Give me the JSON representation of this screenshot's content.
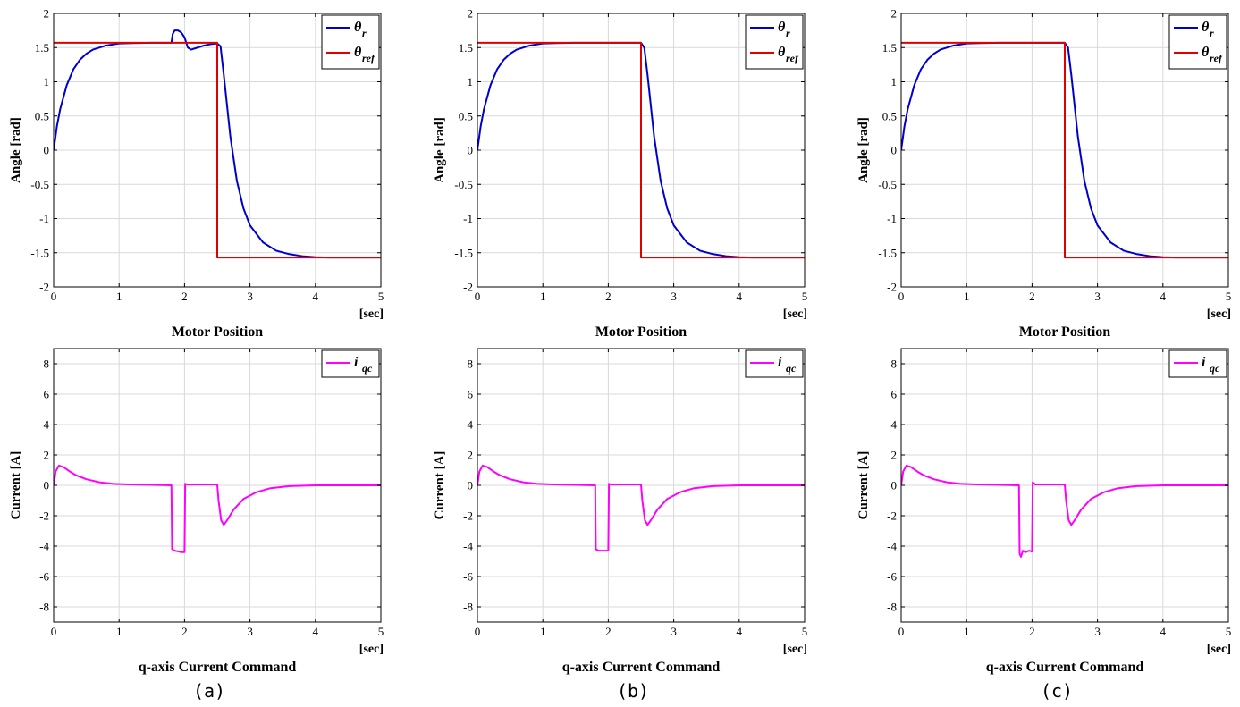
{
  "colors": {
    "theta_r": "#0000cc",
    "theta_ref": "#e00000",
    "iqc": "#ff00ff",
    "grid": "#d9d9d9",
    "axes": "#000000"
  },
  "chart_data": [
    {
      "id": "a-pos",
      "type": "line",
      "title": "Motor Position",
      "ylabel": "Angle [rad]",
      "xunit": "[sec]",
      "xlim": [
        0,
        5
      ],
      "ylim": [
        -2,
        2
      ],
      "xticks": [
        "0",
        "1",
        "2",
        "3",
        "4",
        "5"
      ],
      "yticks": [
        "-2",
        "-1.5",
        "-1",
        "-0.5",
        "0",
        "0.5",
        "1",
        "1.5",
        "2"
      ],
      "legend": [
        {
          "label": "θ",
          "sub": "r",
          "color": "#0000cc"
        },
        {
          "label": "θ",
          "sub": "ref",
          "color": "#e00000"
        }
      ],
      "legend_position": "top-right",
      "series": [
        {
          "name": "θr",
          "color": "#0000cc",
          "x": [
            0,
            0.05,
            0.1,
            0.2,
            0.3,
            0.4,
            0.5,
            0.6,
            0.8,
            1.0,
            1.2,
            1.5,
            1.8,
            1.82,
            1.85,
            1.9,
            1.95,
            2.0,
            2.05,
            2.1,
            2.2,
            2.3,
            2.4,
            2.5,
            2.55,
            2.6,
            2.7,
            2.8,
            2.9,
            3.0,
            3.2,
            3.4,
            3.6,
            3.8,
            4.0,
            4.2,
            4.5,
            5.0
          ],
          "y": [
            0,
            0.35,
            0.6,
            0.95,
            1.18,
            1.32,
            1.41,
            1.47,
            1.53,
            1.56,
            1.565,
            1.57,
            1.57,
            1.7,
            1.75,
            1.75,
            1.72,
            1.65,
            1.5,
            1.47,
            1.5,
            1.53,
            1.55,
            1.56,
            1.52,
            1.1,
            0.2,
            -0.45,
            -0.85,
            -1.1,
            -1.35,
            -1.47,
            -1.52,
            -1.55,
            -1.565,
            -1.57,
            -1.57,
            -1.57
          ]
        },
        {
          "name": "θref",
          "color": "#e00000",
          "x": [
            0,
            2.5,
            2.5,
            5
          ],
          "y": [
            1.57,
            1.57,
            -1.57,
            -1.57
          ]
        }
      ]
    },
    {
      "id": "b-pos",
      "type": "line",
      "title": "Motor Position",
      "ylabel": "Angle [rad]",
      "xunit": "[sec]",
      "xlim": [
        0,
        5
      ],
      "ylim": [
        -2,
        2
      ],
      "xticks": [
        "0",
        "1",
        "2",
        "3",
        "4",
        "5"
      ],
      "yticks": [
        "-2",
        "-1.5",
        "-1",
        "-0.5",
        "0",
        "0.5",
        "1",
        "1.5",
        "2"
      ],
      "legend": [
        {
          "label": "θ",
          "sub": "r",
          "color": "#0000cc"
        },
        {
          "label": "θ",
          "sub": "ref",
          "color": "#e00000"
        }
      ],
      "legend_position": "top-right",
      "series": [
        {
          "name": "θr",
          "color": "#0000cc",
          "x": [
            0,
            0.05,
            0.1,
            0.2,
            0.3,
            0.4,
            0.5,
            0.6,
            0.8,
            1.0,
            1.2,
            1.5,
            2.0,
            2.5,
            2.55,
            2.6,
            2.7,
            2.8,
            2.9,
            3.0,
            3.2,
            3.4,
            3.6,
            3.8,
            4.0,
            4.2,
            4.5,
            5.0
          ],
          "y": [
            0,
            0.35,
            0.6,
            0.95,
            1.18,
            1.32,
            1.41,
            1.47,
            1.53,
            1.56,
            1.565,
            1.57,
            1.57,
            1.57,
            1.5,
            1.1,
            0.2,
            -0.45,
            -0.85,
            -1.1,
            -1.35,
            -1.47,
            -1.52,
            -1.55,
            -1.565,
            -1.57,
            -1.57,
            -1.57
          ]
        },
        {
          "name": "θref",
          "color": "#e00000",
          "x": [
            0,
            2.5,
            2.5,
            5
          ],
          "y": [
            1.57,
            1.57,
            -1.57,
            -1.57
          ]
        }
      ]
    },
    {
      "id": "c-pos",
      "type": "line",
      "title": "Motor Position",
      "ylabel": "Angle [rad]",
      "xunit": "[sec]",
      "xlim": [
        0,
        5
      ],
      "ylim": [
        -2,
        2
      ],
      "xticks": [
        "0",
        "1",
        "2",
        "3",
        "4",
        "5"
      ],
      "yticks": [
        "-2",
        "-1.5",
        "-1",
        "-0.5",
        "0",
        "0.5",
        "1",
        "1.5",
        "2"
      ],
      "legend": [
        {
          "label": "θ",
          "sub": "r",
          "color": "#0000cc"
        },
        {
          "label": "θ",
          "sub": "ref",
          "color": "#e00000"
        }
      ],
      "legend_position": "top-right",
      "series": [
        {
          "name": "θr",
          "color": "#0000cc",
          "x": [
            0,
            0.05,
            0.1,
            0.2,
            0.3,
            0.4,
            0.5,
            0.6,
            0.8,
            1.0,
            1.2,
            1.5,
            2.0,
            2.5,
            2.55,
            2.6,
            2.7,
            2.8,
            2.9,
            3.0,
            3.2,
            3.4,
            3.6,
            3.8,
            4.0,
            4.2,
            4.5,
            5.0
          ],
          "y": [
            0,
            0.35,
            0.6,
            0.95,
            1.18,
            1.32,
            1.41,
            1.47,
            1.53,
            1.56,
            1.565,
            1.57,
            1.57,
            1.57,
            1.5,
            1.1,
            0.2,
            -0.45,
            -0.85,
            -1.1,
            -1.35,
            -1.47,
            -1.52,
            -1.55,
            -1.565,
            -1.57,
            -1.57,
            -1.57
          ]
        },
        {
          "name": "θref",
          "color": "#e00000",
          "x": [
            0,
            2.5,
            2.5,
            5
          ],
          "y": [
            1.57,
            1.57,
            -1.57,
            -1.57
          ]
        }
      ]
    },
    {
      "id": "a-cur",
      "type": "line",
      "title": "q-axis Current Command",
      "ylabel": "Current [A]",
      "xunit": "[sec]",
      "xlim": [
        0,
        5
      ],
      "ylim": [
        -9,
        9
      ],
      "xticks": [
        "0",
        "1",
        "2",
        "3",
        "4",
        "5"
      ],
      "yticks": [
        "-8",
        "-6",
        "-4",
        "-2",
        "0",
        "2",
        "4",
        "6",
        "8"
      ],
      "legend": [
        {
          "label": "i",
          "sub": "qc",
          "color": "#ff00ff"
        }
      ],
      "legend_position": "top-right",
      "series": [
        {
          "name": "iqc",
          "color": "#ff00ff",
          "x": [
            0,
            0.03,
            0.08,
            0.15,
            0.25,
            0.35,
            0.5,
            0.7,
            0.9,
            1.2,
            1.5,
            1.8,
            1.81,
            1.85,
            1.9,
            1.95,
            1.99,
            2.0,
            2.01,
            2.05,
            2.2,
            2.4,
            2.5,
            2.52,
            2.56,
            2.6,
            2.65,
            2.75,
            2.9,
            3.1,
            3.3,
            3.6,
            4.0,
            4.5,
            5.0
          ],
          "y": [
            0,
            0.9,
            1.3,
            1.2,
            0.9,
            0.65,
            0.4,
            0.2,
            0.1,
            0.05,
            0.03,
            0.0,
            -4.2,
            -4.3,
            -4.35,
            -4.4,
            -4.4,
            -4.4,
            0.1,
            0.05,
            0.05,
            0.05,
            0.05,
            -1.0,
            -2.3,
            -2.6,
            -2.3,
            -1.6,
            -0.9,
            -0.45,
            -0.2,
            -0.05,
            0.0,
            0.0,
            0.0
          ]
        }
      ]
    },
    {
      "id": "b-cur",
      "type": "line",
      "title": "q-axis Current Command",
      "ylabel": "Current [A]",
      "xunit": "[sec]",
      "xlim": [
        0,
        5
      ],
      "ylim": [
        -9,
        9
      ],
      "xticks": [
        "0",
        "1",
        "2",
        "3",
        "4",
        "5"
      ],
      "yticks": [
        "-8",
        "-6",
        "-4",
        "-2",
        "0",
        "2",
        "4",
        "6",
        "8"
      ],
      "legend": [
        {
          "label": "i",
          "sub": "qc",
          "color": "#ff00ff"
        }
      ],
      "legend_position": "top-right",
      "series": [
        {
          "name": "iqc",
          "color": "#ff00ff",
          "x": [
            0,
            0.03,
            0.08,
            0.15,
            0.25,
            0.35,
            0.5,
            0.7,
            0.9,
            1.2,
            1.5,
            1.8,
            1.81,
            1.85,
            1.9,
            1.95,
            1.99,
            2.0,
            2.01,
            2.05,
            2.2,
            2.4,
            2.5,
            2.52,
            2.56,
            2.6,
            2.65,
            2.75,
            2.9,
            3.1,
            3.3,
            3.6,
            4.0,
            4.5,
            5.0
          ],
          "y": [
            0,
            0.9,
            1.3,
            1.2,
            0.9,
            0.65,
            0.4,
            0.2,
            0.1,
            0.05,
            0.03,
            0.0,
            -4.2,
            -4.3,
            -4.3,
            -4.3,
            -4.3,
            -4.3,
            0.1,
            0.05,
            0.05,
            0.05,
            0.05,
            -1.0,
            -2.3,
            -2.6,
            -2.3,
            -1.6,
            -0.9,
            -0.45,
            -0.2,
            -0.05,
            0.0,
            0.0,
            0.0
          ]
        }
      ]
    },
    {
      "id": "c-cur",
      "type": "line",
      "title": "q-axis Current Command",
      "ylabel": "Current [A]",
      "xunit": "[sec]",
      "xlim": [
        0,
        5
      ],
      "ylim": [
        -9,
        9
      ],
      "xticks": [
        "0",
        "1",
        "2",
        "3",
        "4",
        "5"
      ],
      "yticks": [
        "-8",
        "-6",
        "-4",
        "-2",
        "0",
        "2",
        "4",
        "6",
        "8"
      ],
      "legend": [
        {
          "label": "i",
          "sub": "qc",
          "color": "#ff00ff"
        }
      ],
      "legend_position": "top-right",
      "series": [
        {
          "name": "iqc",
          "color": "#ff00ff",
          "x": [
            0,
            0.03,
            0.08,
            0.15,
            0.25,
            0.35,
            0.5,
            0.7,
            0.9,
            1.2,
            1.5,
            1.8,
            1.81,
            1.83,
            1.86,
            1.9,
            1.95,
            1.99,
            2.0,
            2.01,
            2.05,
            2.2,
            2.4,
            2.5,
            2.52,
            2.56,
            2.6,
            2.65,
            2.75,
            2.9,
            3.1,
            3.3,
            3.6,
            4.0,
            4.5,
            5.0
          ],
          "y": [
            0,
            0.9,
            1.3,
            1.2,
            0.9,
            0.65,
            0.4,
            0.2,
            0.1,
            0.05,
            0.03,
            0.0,
            -4.5,
            -4.7,
            -4.3,
            -4.4,
            -4.3,
            -4.35,
            -4.35,
            0.2,
            0.05,
            0.05,
            0.05,
            0.05,
            -1.0,
            -2.3,
            -2.6,
            -2.3,
            -1.6,
            -0.9,
            -0.45,
            -0.2,
            -0.05,
            0.0,
            0.0,
            0.0
          ]
        }
      ]
    }
  ],
  "captions": [
    "(a)",
    "(b)",
    "(c)"
  ]
}
